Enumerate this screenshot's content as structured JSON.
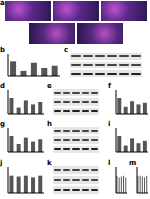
{
  "chart_data": [
    {
      "type": "bar",
      "label": "b",
      "categories": [
        null,
        null,
        null,
        null,
        null
      ],
      "values": [
        1.0,
        0.35,
        0.9,
        0.55,
        0.7
      ],
      "color": "#555555",
      "ylim": [
        0,
        1.5
      ],
      "yticks": [
        0,
        0.5,
        1,
        1.5
      ],
      "tick_labels": false
    },
    {
      "type": "bar",
      "label": "d",
      "categories": [
        null,
        null,
        null,
        null,
        null
      ],
      "values": [
        1.0,
        0.4,
        0.85,
        0.6,
        0.75
      ],
      "color": "#555555",
      "ylim": [
        0,
        1.5
      ],
      "yticks": [
        0,
        0.5,
        1,
        1.5
      ],
      "tick_labels": false
    },
    {
      "type": "bar",
      "label": "f",
      "categories": [
        null,
        null,
        null,
        null,
        null
      ],
      "values": [
        1.0,
        0.45,
        0.8,
        0.6,
        0.7
      ],
      "color": "#555555",
      "ylim": [
        0,
        1.5
      ],
      "yticks": [
        0,
        0.5,
        1,
        1.5
      ],
      "tick_labels": false
    },
    {
      "type": "bar",
      "label": "g",
      "categories": [
        null,
        null,
        null,
        null,
        null
      ],
      "values": [
        1.0,
        0.5,
        0.9,
        0.65,
        0.8
      ],
      "color": "#555555",
      "ylim": [
        0,
        1.5
      ],
      "yticks": [
        0,
        0.5,
        1,
        1.5
      ],
      "tick_labels": false
    },
    {
      "type": "bar",
      "label": "i",
      "categories": [
        null,
        null,
        null,
        null,
        null
      ],
      "values": [
        1.0,
        0.4,
        0.85,
        0.55,
        0.7
      ],
      "color": "#555555",
      "ylim": [
        0,
        1.5
      ],
      "yticks": [
        0,
        0.5,
        1,
        1.5
      ],
      "tick_labels": false
    },
    {
      "type": "bar",
      "label": "j",
      "categories": [
        null,
        null,
        null,
        null,
        null
      ],
      "values": [
        1.0,
        0.95,
        1.0,
        0.9,
        1.0
      ],
      "color": "#555555",
      "ylim": [
        0,
        1.5
      ],
      "yticks": [
        0,
        0.5,
        1,
        1.5
      ],
      "tick_labels": false
    },
    {
      "type": "bar",
      "label": "l",
      "categories": [
        null,
        null,
        null,
        null,
        null
      ],
      "values": [
        1.0,
        0.9,
        0.95,
        1.0,
        0.9
      ],
      "color": "#555555",
      "ylim": [
        0,
        1.5
      ],
      "yticks": [
        0,
        0.5,
        1,
        1.5
      ],
      "tick_labels": false
    },
    {
      "type": "bar",
      "label": "m",
      "categories": [
        null,
        null,
        null,
        null,
        null
      ],
      "values": [
        1.0,
        1.0,
        0.95,
        0.9,
        1.0
      ],
      "color": "#555555",
      "ylim": [
        0,
        1.5
      ],
      "yticks": [
        0,
        0.5,
        1,
        1.5
      ],
      "tick_labels": false
    }
  ],
  "image_panels": [
    {
      "label": "a"
    }
  ],
  "blot_panels": [
    {
      "label": "c"
    },
    {
      "label": "e"
    },
    {
      "label": "h"
    },
    {
      "label": "k"
    }
  ]
}
